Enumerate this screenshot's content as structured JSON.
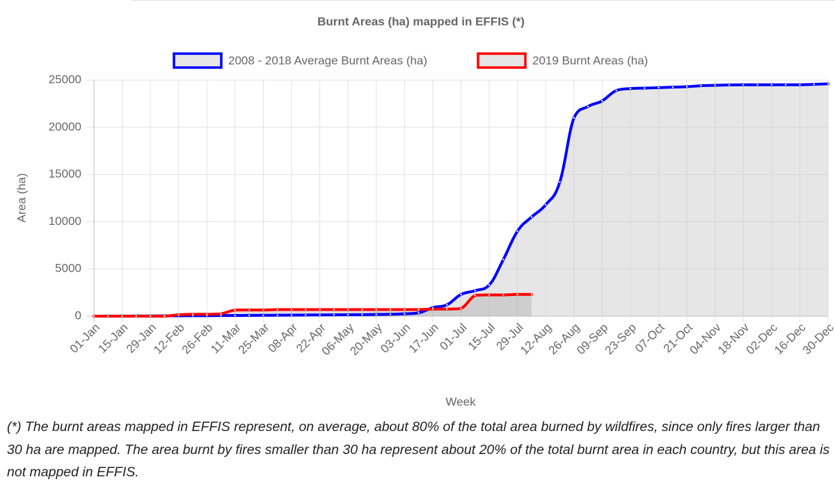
{
  "chart_data": {
    "type": "line",
    "title": "Burnt Areas (ha) mapped in EFFIS (*)",
    "x_label": "Week",
    "y_label": "Area (ha)",
    "footnote": "(*) The burnt areas mapped in EFFIS represent, on average, about 80% of the total area burned by wildfires, since only fires larger than 30 ha are mapped. The area burnt by fires smaller than 30 ha represent about 20% of the total burnt area in each country, but this area is not mapped in EFFIS.",
    "categories": [
      "01-Jan",
      null,
      "15-Jan",
      null,
      "29-Jan",
      null,
      "12-Feb",
      null,
      "26-Feb",
      null,
      "11-Mar",
      null,
      "25-Mar",
      null,
      "08-Apr",
      null,
      "22-Apr",
      null,
      "06-May",
      null,
      "20-May",
      null,
      "03-Jun",
      null,
      "17-Jun",
      null,
      "01-Jul",
      null,
      "15-Jul",
      null,
      "29-Jul",
      null,
      "12-Aug",
      null,
      "26-Aug",
      null,
      "09-Sep",
      null,
      "23-Sep",
      null,
      "07-Oct",
      null,
      "21-Oct",
      null,
      "04-Nov",
      null,
      "18-Nov",
      null,
      "02-Dec",
      null,
      "16-Dec",
      null,
      "30-Dec"
    ],
    "series": [
      {
        "name": "2008 - 2018 Average Burnt Areas (ha)",
        "color": "#0000ff",
        "fill": "rgba(200,200,200,0.45)",
        "values": [
          0,
          5,
          10,
          15,
          20,
          30,
          40,
          50,
          50,
          60,
          70,
          80,
          90,
          100,
          110,
          120,
          130,
          140,
          150,
          160,
          180,
          200,
          250,
          350,
          900,
          1200,
          2300,
          2700,
          3300,
          6000,
          9000,
          10500,
          11800,
          14200,
          21000,
          22200,
          22800,
          23900,
          24100,
          24150,
          24200,
          24250,
          24300,
          24400,
          24450,
          24480,
          24500,
          24500,
          24500,
          24500,
          24500,
          24550,
          24600
        ]
      },
      {
        "name": "2019 Burnt Areas (ha)",
        "color": "#ff0000",
        "fill": "rgba(160,160,160,0.35)",
        "values": [
          0,
          0,
          0,
          0,
          0,
          0,
          150,
          200,
          200,
          250,
          650,
          650,
          650,
          700,
          700,
          700,
          700,
          700,
          700,
          700,
          700,
          700,
          700,
          700,
          750,
          750,
          800,
          2200,
          2250,
          2250,
          2300,
          2300,
          null,
          null,
          null,
          null,
          null,
          null,
          null,
          null,
          null,
          null,
          null,
          null,
          null,
          null,
          null,
          null,
          null,
          null,
          null,
          null,
          null
        ]
      }
    ],
    "ylim": [
      0,
      25000
    ],
    "yticks": [
      0,
      5000,
      10000,
      15000,
      20000,
      25000
    ],
    "grid": true
  }
}
